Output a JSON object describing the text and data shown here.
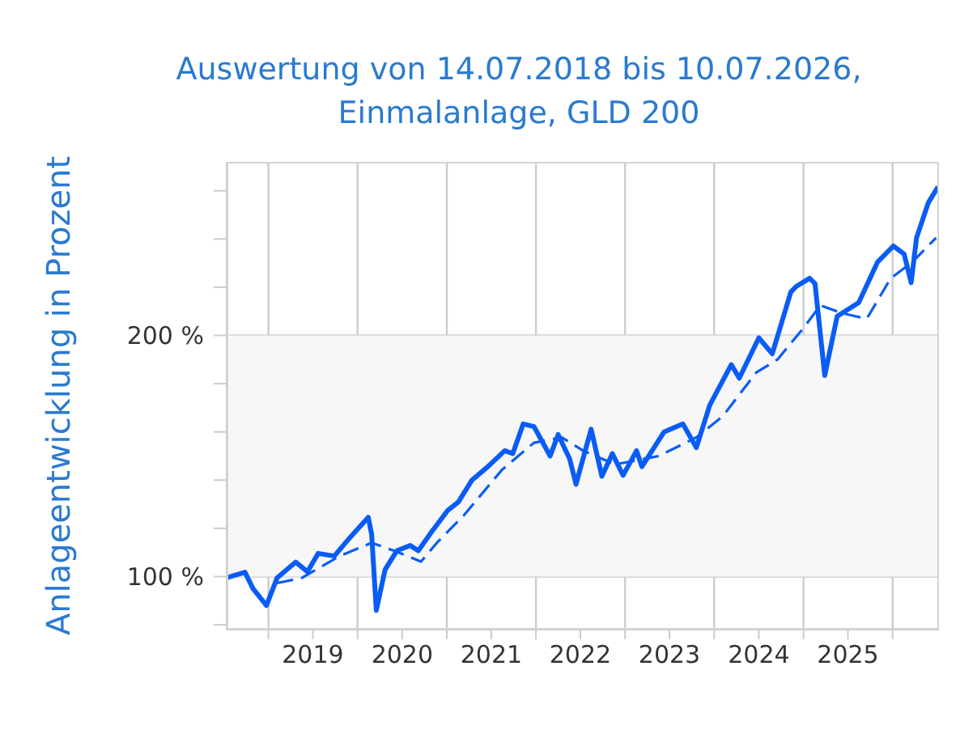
{
  "chart_data": {
    "type": "line",
    "title": "Auswertung von 14.07.2018 bis 10.07.2026,\nEinmalanlage, GLD 200",
    "ylabel": "Anlageentwicklung  in Prozent",
    "xlim": [
      "2018-07-14",
      "2026-07-10"
    ],
    "xticks": [
      {
        "value": "2019-01-01",
        "label": null
      },
      {
        "value": "2019-07-02",
        "label": "2019"
      },
      {
        "value": "2020-01-01",
        "label": null
      },
      {
        "value": "2020-07-02",
        "label": "2020"
      },
      {
        "value": "2021-01-01",
        "label": null
      },
      {
        "value": "2021-07-02",
        "label": "2021"
      },
      {
        "value": "2022-01-01",
        "label": null
      },
      {
        "value": "2022-07-02",
        "label": "2022"
      },
      {
        "value": "2023-01-01",
        "label": null
      },
      {
        "value": "2023-07-02",
        "label": "2023"
      },
      {
        "value": "2024-01-01",
        "label": null
      },
      {
        "value": "2024-07-02",
        "label": "2024"
      },
      {
        "value": "2025-01-01",
        "label": null
      },
      {
        "value": "2025-07-02",
        "label": "2025"
      },
      {
        "value": "2026-01-01",
        "label": null
      }
    ],
    "ylim": [
      78,
      272
    ],
    "yticks": [
      {
        "value": 80,
        "label": null
      },
      {
        "value": 100,
        "label": "100 %"
      },
      {
        "value": 120,
        "label": null
      },
      {
        "value": 140,
        "label": null
      },
      {
        "value": 160,
        "label": null
      },
      {
        "value": 180,
        "label": null
      },
      {
        "value": 200,
        "label": "200 %"
      },
      {
        "value": 220,
        "label": null
      },
      {
        "value": 240,
        "label": null
      },
      {
        "value": 260,
        "label": null
      }
    ],
    "grid": true,
    "bands": [
      {
        "axis": "y",
        "from": 100,
        "to": 200,
        "color": "#f7f7f7"
      }
    ],
    "series": [
      {
        "color": "#0a5cf5",
        "line_style": "solid",
        "x": [
          "2018-07-14",
          "2018-09-27",
          "2018-10-30",
          "2018-12-24",
          "2019-02-06",
          "2019-04-23",
          "2019-06-10",
          "2019-07-24",
          "2019-09-28",
          "2019-12-02",
          "2020-02-14",
          "2020-02-28",
          "2020-03-18",
          "2020-04-23",
          "2020-06-10",
          "2020-08-04",
          "2020-09-06",
          "2020-10-31",
          "2021-01-05",
          "2021-02-17",
          "2021-04-13",
          "2021-06-18",
          "2021-08-26",
          "2021-09-28",
          "2021-11-10",
          "2021-12-24",
          "2022-02-28",
          "2022-04-02",
          "2022-05-19",
          "2022-06-14",
          "2022-08-15",
          "2022-09-28",
          "2022-11-10",
          "2022-12-24",
          "2023-02-17",
          "2023-03-11",
          "2023-06-10",
          "2023-08-26",
          "2023-10-20",
          "2023-12-14",
          "2024-03-11",
          "2024-04-13",
          "2024-07-02",
          "2024-08-26",
          "2024-11-10",
          "2024-12-02",
          "2025-01-26",
          "2025-02-17",
          "2025-03-29",
          "2025-05-19",
          "2025-08-15",
          "2025-10-31",
          "2026-01-04",
          "2026-02-17",
          "2026-03-18",
          "2026-04-09",
          "2026-05-27",
          "2026-07-06"
        ],
        "values": [
          99.5,
          101.8,
          95,
          88,
          99.5,
          106,
          102,
          109.6,
          108.5,
          116.3,
          124.6,
          117.4,
          86,
          102.9,
          110.7,
          112.9,
          110.7,
          118.6,
          127.5,
          130.9,
          139.9,
          145.6,
          152.2,
          151,
          163.3,
          162.2,
          150,
          158.9,
          148.8,
          138.3,
          161.1,
          141.6,
          151,
          142,
          152.2,
          145.6,
          160,
          163.3,
          153.5,
          171.1,
          187.9,
          182.3,
          199,
          192.4,
          218,
          220.3,
          223.7,
          221.5,
          183.4,
          208,
          213.6,
          230.4,
          237.1,
          233.8,
          221.9,
          240.5,
          255,
          261.7
        ]
      },
      {
        "color": "#0a5cf5",
        "line_style": "dashed",
        "x": [
          "2019-02-06",
          "2019-05-19",
          "2019-10-20",
          "2020-02-28",
          "2020-05-30",
          "2020-09-17",
          "2020-11-22",
          "2021-03-11",
          "2021-08-15",
          "2021-12-24",
          "2022-04-17",
          "2022-07-13",
          "2022-11-22",
          "2023-05-19",
          "2023-10-20",
          "2024-02-06",
          "2024-06-21",
          "2024-09-17",
          "2025-01-05",
          "2025-03-11",
          "2025-06-10",
          "2025-09-17",
          "2025-12-24",
          "2026-03-22",
          "2026-06-28"
        ],
        "values": [
          97.3,
          99.5,
          108.5,
          114,
          110.7,
          106.2,
          114.1,
          125.3,
          144.3,
          155.5,
          157.7,
          152.2,
          146.5,
          150,
          157.7,
          166.6,
          184.6,
          190.1,
          203.6,
          212.5,
          209.2,
          206.9,
          223.7,
          230.4,
          240.5
        ]
      }
    ]
  }
}
